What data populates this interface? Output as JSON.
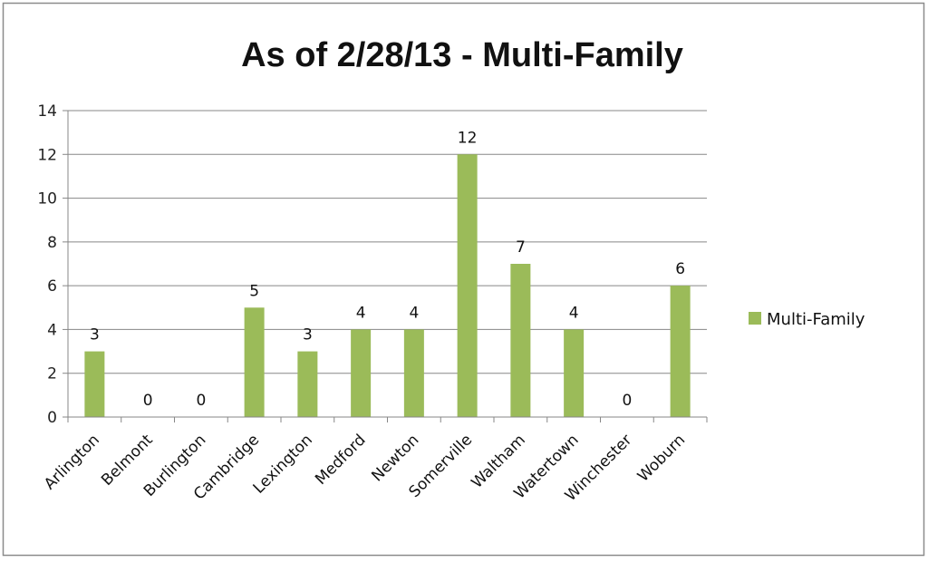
{
  "chart_data": {
    "type": "bar",
    "title": "As of 2/28/13 - Multi-Family",
    "categories": [
      "Arlington",
      "Belmont",
      "Burlington",
      "Cambridge",
      "Lexington",
      "Medford",
      "Newton",
      "Somerville",
      "Waltham",
      "Watertown",
      "Winchester",
      "Woburn"
    ],
    "series": [
      {
        "name": "Multi-Family",
        "color": "#9bbb59",
        "values": [
          3,
          0,
          0,
          5,
          3,
          4,
          4,
          12,
          7,
          4,
          0,
          6
        ]
      }
    ],
    "ylim": [
      0,
      14
    ],
    "yticks": [
      "0",
      "2",
      "4",
      "6",
      "8",
      "10",
      "12",
      "14"
    ],
    "grid": true,
    "legend_position": "right",
    "data_labels": true
  }
}
